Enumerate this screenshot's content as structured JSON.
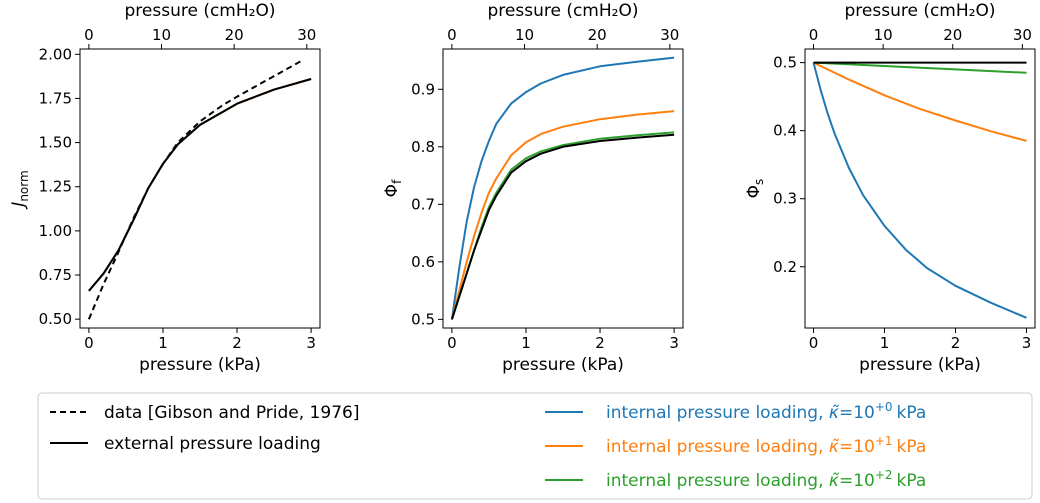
{
  "chart_data": [
    {
      "type": "line",
      "xlabel": "pressure (kPa)",
      "x2label": "pressure (cmH₂O)",
      "ylabel": "J",
      "ylabel_sub": "norm",
      "xlim": [
        -0.12,
        3.12
      ],
      "ylim": [
        0.45,
        2.03
      ],
      "xticks": [
        0,
        1,
        2,
        3
      ],
      "x2ticks": [
        0,
        10,
        20,
        30
      ],
      "yticks": [
        0.5,
        0.75,
        1.0,
        1.25,
        1.5,
        1.75,
        2.0
      ],
      "ytick_labels": [
        "0.50",
        "0.75",
        "1.00",
        "1.25",
        "1.50",
        "1.75",
        "2.00"
      ],
      "series": [
        {
          "key": "data",
          "color": "#000000",
          "dash": true,
          "x": [
            0,
            0.1,
            0.2,
            0.3,
            0.4,
            0.6,
            0.8,
            1.0,
            1.2,
            1.5,
            1.8,
            2.0,
            2.3,
            2.6,
            2.9
          ],
          "y": [
            0.5,
            0.6,
            0.7,
            0.79,
            0.88,
            1.07,
            1.24,
            1.38,
            1.5,
            1.62,
            1.71,
            1.76,
            1.83,
            1.9,
            1.97
          ]
        },
        {
          "key": "internal_1e0",
          "color": "#1f77b4",
          "x": [
            0,
            0.2,
            0.4,
            0.6,
            0.8,
            1.0,
            1.2,
            1.5,
            2.0,
            2.5,
            3.0
          ],
          "y": [
            0.66,
            0.76,
            0.89,
            1.06,
            1.24,
            1.38,
            1.49,
            1.6,
            1.72,
            1.8,
            1.86
          ]
        },
        {
          "key": "internal_1e1",
          "color": "#ff7f0e",
          "x": [
            0,
            0.2,
            0.4,
            0.6,
            0.8,
            1.0,
            1.2,
            1.5,
            2.0,
            2.5,
            3.0
          ],
          "y": [
            0.66,
            0.76,
            0.89,
            1.06,
            1.24,
            1.38,
            1.49,
            1.6,
            1.72,
            1.8,
            1.86
          ]
        },
        {
          "key": "external",
          "color": "#000000",
          "x": [
            0,
            0.2,
            0.4,
            0.6,
            0.8,
            1.0,
            1.2,
            1.5,
            2.0,
            2.5,
            3.0
          ],
          "y": [
            0.66,
            0.76,
            0.89,
            1.06,
            1.24,
            1.38,
            1.49,
            1.6,
            1.72,
            1.8,
            1.86
          ]
        }
      ]
    },
    {
      "type": "line",
      "xlabel": "pressure (kPa)",
      "x2label": "pressure (cmH₂O)",
      "ylabel": "Φ",
      "ylabel_sub": "f",
      "xlim": [
        -0.12,
        3.12
      ],
      "ylim": [
        0.485,
        0.97
      ],
      "xticks": [
        0,
        1,
        2,
        3
      ],
      "x2ticks": [
        0,
        10,
        20,
        30
      ],
      "yticks": [
        0.5,
        0.6,
        0.7,
        0.8,
        0.9
      ],
      "ytick_labels": [
        "0.5",
        "0.6",
        "0.7",
        "0.8",
        "0.9"
      ],
      "series": [
        {
          "key": "internal_1e0",
          "color": "#1f77b4",
          "x": [
            0,
            0.1,
            0.2,
            0.3,
            0.4,
            0.5,
            0.6,
            0.8,
            1.0,
            1.2,
            1.5,
            2.0,
            2.5,
            3.0
          ],
          "y": [
            0.5,
            0.59,
            0.67,
            0.73,
            0.775,
            0.81,
            0.84,
            0.875,
            0.895,
            0.91,
            0.925,
            0.94,
            0.948,
            0.955
          ]
        },
        {
          "key": "internal_1e1",
          "color": "#ff7f0e",
          "x": [
            0,
            0.1,
            0.2,
            0.3,
            0.4,
            0.5,
            0.6,
            0.8,
            1.0,
            1.2,
            1.5,
            2.0,
            2.5,
            3.0
          ],
          "y": [
            0.5,
            0.55,
            0.6,
            0.645,
            0.685,
            0.72,
            0.745,
            0.785,
            0.808,
            0.822,
            0.835,
            0.848,
            0.856,
            0.862
          ]
        },
        {
          "key": "internal_1e2",
          "color": "#2ca02c",
          "x": [
            0,
            0.1,
            0.2,
            0.3,
            0.4,
            0.5,
            0.6,
            0.8,
            1.0,
            1.2,
            1.5,
            2.0,
            2.5,
            3.0
          ],
          "y": [
            0.5,
            0.54,
            0.58,
            0.62,
            0.66,
            0.695,
            0.72,
            0.76,
            0.78,
            0.792,
            0.803,
            0.814,
            0.82,
            0.825
          ]
        },
        {
          "key": "external",
          "color": "#000000",
          "x": [
            0,
            0.1,
            0.2,
            0.3,
            0.4,
            0.5,
            0.6,
            0.8,
            1.0,
            1.2,
            1.5,
            2.0,
            2.5,
            3.0
          ],
          "y": [
            0.5,
            0.54,
            0.58,
            0.62,
            0.655,
            0.69,
            0.715,
            0.755,
            0.775,
            0.788,
            0.8,
            0.81,
            0.816,
            0.821
          ]
        }
      ]
    },
    {
      "type": "line",
      "xlabel": "pressure (kPa)",
      "x2label": "pressure (cmH₂O)",
      "ylabel": "Φ",
      "ylabel_sub": "s",
      "xlim": [
        -0.12,
        3.12
      ],
      "ylim": [
        0.11,
        0.52
      ],
      "xticks": [
        0,
        1,
        2,
        3
      ],
      "x2ticks": [
        0,
        10,
        20,
        30
      ],
      "yticks": [
        0.2,
        0.3,
        0.4,
        0.5
      ],
      "ytick_labels": [
        "0.2",
        "0.3",
        "0.4",
        "0.5"
      ],
      "series": [
        {
          "key": "internal_1e0",
          "color": "#1f77b4",
          "x": [
            0,
            0.1,
            0.2,
            0.3,
            0.5,
            0.7,
            1.0,
            1.3,
            1.6,
            2.0,
            2.5,
            3.0
          ],
          "y": [
            0.5,
            0.46,
            0.425,
            0.395,
            0.345,
            0.305,
            0.26,
            0.225,
            0.198,
            0.172,
            0.147,
            0.125
          ]
        },
        {
          "key": "internal_1e1",
          "color": "#ff7f0e",
          "x": [
            0,
            0.5,
            1.0,
            1.5,
            2.0,
            2.5,
            3.0
          ],
          "y": [
            0.5,
            0.475,
            0.452,
            0.432,
            0.415,
            0.399,
            0.385
          ]
        },
        {
          "key": "internal_1e2",
          "color": "#2ca02c",
          "x": [
            0,
            1.0,
            2.0,
            3.0
          ],
          "y": [
            0.5,
            0.495,
            0.49,
            0.485
          ]
        },
        {
          "key": "external",
          "color": "#000000",
          "x": [
            0,
            3.0
          ],
          "y": [
            0.5,
            0.5
          ]
        }
      ]
    }
  ],
  "legend": {
    "data": "data [Gibson and Pride, 1976]",
    "external": "external pressure loading",
    "internal_prefix": "internal pressure loading,",
    "kappa_symbol": "κ̃",
    "equals": "=",
    "base": "10",
    "unit": "kPa",
    "exp_1e0": "+0",
    "exp_1e1": "+1",
    "exp_1e2": "+2"
  },
  "colors": {
    "blue": "#1f77b4",
    "orange": "#ff7f0e",
    "green": "#2ca02c",
    "black": "#000000"
  }
}
